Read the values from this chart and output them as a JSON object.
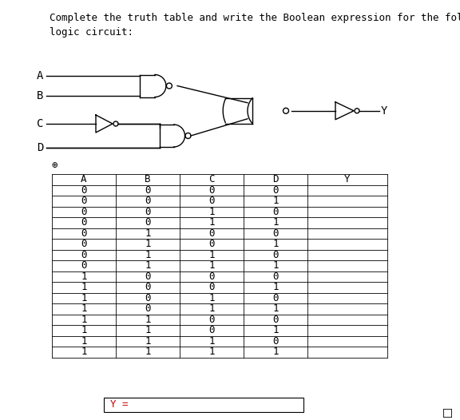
{
  "title_text": "Complete the truth table and write the Boolean expression for the following\nlogic circuit:",
  "title_fontsize": 9,
  "background_color": "#ffffff",
  "table_headers": [
    "A",
    "B",
    "C",
    "D",
    "Y"
  ],
  "table_data": [
    [
      0,
      0,
      0,
      0,
      ""
    ],
    [
      0,
      0,
      0,
      1,
      ""
    ],
    [
      0,
      0,
      1,
      0,
      ""
    ],
    [
      0,
      0,
      1,
      1,
      ""
    ],
    [
      0,
      1,
      0,
      0,
      ""
    ],
    [
      0,
      1,
      0,
      1,
      ""
    ],
    [
      0,
      1,
      1,
      0,
      ""
    ],
    [
      0,
      1,
      1,
      1,
      ""
    ],
    [
      1,
      0,
      0,
      0,
      ""
    ],
    [
      1,
      0,
      0,
      1,
      ""
    ],
    [
      1,
      0,
      1,
      0,
      ""
    ],
    [
      1,
      0,
      1,
      1,
      ""
    ],
    [
      1,
      1,
      0,
      0,
      ""
    ],
    [
      1,
      1,
      0,
      1,
      ""
    ],
    [
      1,
      1,
      1,
      0,
      ""
    ],
    [
      1,
      1,
      1,
      1,
      ""
    ]
  ],
  "y_label_text": "Y =",
  "y_label_color": "#cc0000",
  "input_labels": [
    "A",
    "B",
    "C",
    "D"
  ],
  "circuit_line_color": "#000000",
  "circuit_lw": 1.0
}
